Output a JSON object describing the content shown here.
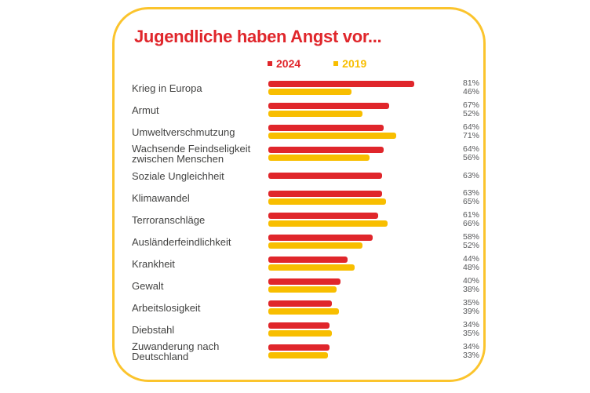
{
  "card": {
    "title": "Jugendliche haben Angst vor...",
    "title_color": "#E0262B",
    "border_color": "#FBC42D"
  },
  "legend": {
    "items": [
      {
        "label": "2024",
        "color": "#E0262B"
      },
      {
        "label": "2019",
        "color": "#F8BE00"
      }
    ]
  },
  "chart_data": {
    "type": "bar",
    "orientation": "horizontal",
    "title": "Jugendliche haben Angst vor...",
    "unit": "%",
    "xlim": [
      0,
      100
    ],
    "grid": false,
    "legend_position": "top",
    "value_label_position": "right",
    "categories": [
      "Krieg in Europa",
      "Armut",
      "Umweltverschmutzung",
      "Wachsende Feindseligkeit zwischen Menschen",
      "Soziale Ungleichheit",
      "Klimawandel",
      "Terroranschläge",
      "Ausländerfeindlichkeit",
      "Krankheit",
      "Gewalt",
      "Arbeitslosigkeit",
      "Diebstahl",
      "Zuwanderung nach Deutschland"
    ],
    "series": [
      {
        "name": "2024",
        "color": "#E0262B",
        "values": [
          81,
          67,
          64,
          64,
          63,
          63,
          61,
          58,
          44,
          40,
          35,
          34,
          34
        ]
      },
      {
        "name": "2019",
        "color": "#F8BE00",
        "values": [
          46,
          52,
          71,
          56,
          null,
          65,
          66,
          52,
          48,
          38,
          39,
          35,
          33
        ]
      }
    ]
  }
}
